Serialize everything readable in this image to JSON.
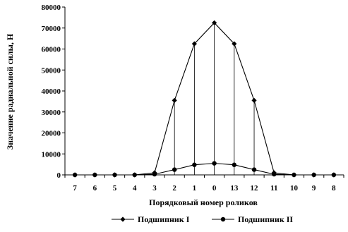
{
  "chart_data": {
    "type": "line",
    "xlabel": "Порядковый номер роликов",
    "ylabel": "Значение радиальной силы, Н",
    "ylim": [
      0,
      80000
    ],
    "yticks": [
      0,
      10000,
      20000,
      30000,
      40000,
      50000,
      60000,
      70000,
      80000
    ],
    "categories": [
      "7",
      "6",
      "5",
      "4",
      "3",
      "2",
      "1",
      "0",
      "13",
      "12",
      "11",
      "10",
      "9",
      "8"
    ],
    "grid": false,
    "drop_lines": true,
    "legend_position": "bottom",
    "series": [
      {
        "name": "Подшипник I",
        "marker": "diamond",
        "color": "#000000",
        "values": [
          0,
          0,
          0,
          0,
          1000,
          35500,
          62500,
          72500,
          62500,
          35500,
          1000,
          0,
          0,
          0
        ]
      },
      {
        "name": "Подшипник II",
        "marker": "circle",
        "color": "#000000",
        "values": [
          0,
          0,
          0,
          0,
          300,
          2500,
          4800,
          5500,
          4800,
          2500,
          300,
          0,
          0,
          0
        ]
      }
    ]
  }
}
